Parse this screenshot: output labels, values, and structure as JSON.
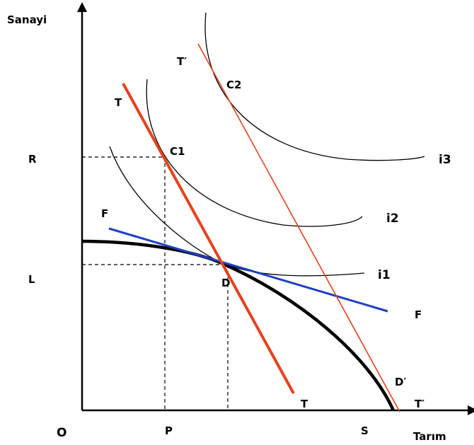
{
  "axes": {
    "y_label": "Sanayi",
    "x_label": "Tarım",
    "origin": "O"
  },
  "guides": {
    "y_upper": "R",
    "y_lower": "L",
    "x_left": "P",
    "x_right": "S"
  },
  "curves": {
    "indifference": [
      "i1",
      "i2",
      "i3"
    ],
    "ppf_point_d": "D",
    "ppf_point_d2": "D′"
  },
  "lines": {
    "terms_of_trade": "T",
    "terms_of_trade_2": "T′",
    "domestic_price": "F"
  },
  "points": {
    "c1": "C1",
    "c2": "C2"
  },
  "colors": {
    "axis": "#000000",
    "ppf": "#000000",
    "t_line": "#e8401c",
    "f_line": "#1f3fc4",
    "guide": "#000000"
  }
}
